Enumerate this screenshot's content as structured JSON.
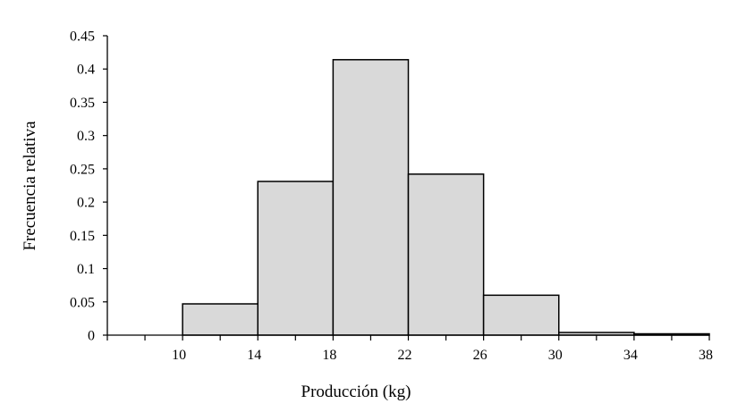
{
  "chart_data": {
    "type": "bar",
    "subtype": "histogram",
    "title": "",
    "xlabel": "Producción (kg)",
    "ylabel": "Frecuencia relativa",
    "xlim": [
      6,
      38
    ],
    "ylim": [
      0,
      0.45
    ],
    "x_ticks": [
      "10",
      "14",
      "18",
      "22",
      "26",
      "30",
      "34",
      "38"
    ],
    "y_ticks": [
      "0",
      "0.05",
      "0.1",
      "0.15",
      "0.2",
      "0.25",
      "0.3",
      "0.35",
      "0.4",
      "0.45"
    ],
    "bins": [
      {
        "from": 10,
        "to": 14,
        "value": 0.047
      },
      {
        "from": 14,
        "to": 18,
        "value": 0.231
      },
      {
        "from": 18,
        "to": 22,
        "value": 0.414
      },
      {
        "from": 22,
        "to": 26,
        "value": 0.242
      },
      {
        "from": 26,
        "to": 30,
        "value": 0.06
      },
      {
        "from": 30,
        "to": 34,
        "value": 0.004
      },
      {
        "from": 34,
        "to": 38,
        "value": 0.002
      }
    ],
    "grid": false,
    "legend": "none",
    "bar_fill": "#d9d9d9",
    "bar_stroke": "#000000"
  }
}
